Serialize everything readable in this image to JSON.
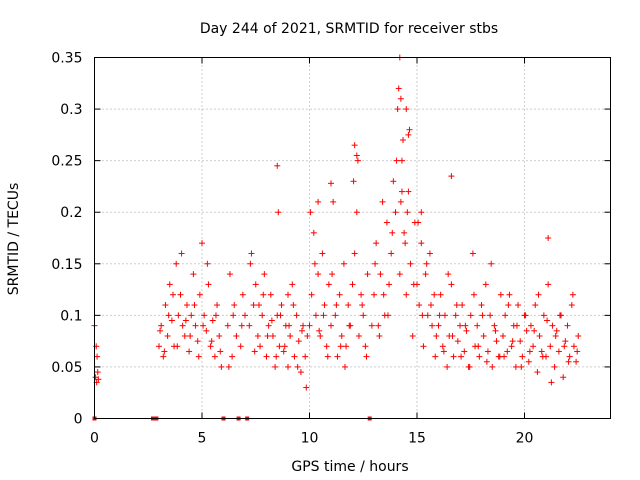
{
  "chart_data": {
    "type": "scatter",
    "title": "Day 244 of 2021, SRMTID for receiver stbs",
    "xlabel": "GPS time / hours",
    "ylabel": "SRMTID / TECUs",
    "xlim": [
      0,
      24
    ],
    "ylim": [
      0,
      0.35
    ],
    "xticks": [
      0,
      5,
      10,
      15,
      20
    ],
    "xtick_labels": [
      "0",
      "5",
      "10",
      "15",
      "20"
    ],
    "yticks": [
      0,
      0.05,
      0.1,
      0.15,
      0.2,
      0.25,
      0.3,
      0.35
    ],
    "ytick_labels": [
      "0",
      "0.05",
      "0.1",
      "0.15",
      "0.2",
      "0.25",
      "0.3",
      "0.35"
    ],
    "grid": true,
    "marker": "plus",
    "color": "#ff0000",
    "zero_points_x": [
      0.0,
      2.72,
      2.88,
      6.0,
      6.7,
      7.1,
      12.8
    ],
    "series": [
      {
        "name": "SRMTID",
        "color": "#ff0000",
        "x": [
          0.0,
          0.05,
          0.08,
          0.1,
          0.12,
          0.15,
          0.18,
          3.0,
          3.1,
          3.2,
          3.3,
          3.4,
          3.5,
          3.6,
          3.7,
          3.8,
          3.9,
          4.0,
          4.1,
          4.2,
          4.3,
          4.4,
          4.5,
          4.6,
          4.7,
          4.8,
          4.9,
          5.0,
          5.1,
          5.2,
          5.3,
          5.4,
          5.5,
          5.6,
          5.7,
          5.8,
          5.9,
          3.05,
          3.25,
          3.45,
          3.65,
          3.85,
          4.05,
          4.25,
          4.45,
          4.65,
          4.85,
          5.05,
          5.25,
          5.45,
          5.65,
          5.85,
          6.2,
          6.3,
          6.4,
          6.5,
          6.6,
          6.8,
          6.9,
          7.0,
          7.2,
          7.3,
          7.4,
          7.5,
          7.6,
          7.7,
          7.8,
          7.9,
          8.0,
          8.1,
          8.2,
          8.3,
          8.4,
          8.5,
          8.6,
          8.7,
          8.8,
          8.9,
          9.0,
          9.1,
          9.2,
          9.3,
          9.4,
          9.5,
          9.6,
          9.7,
          9.8,
          9.9,
          6.25,
          6.45,
          6.85,
          7.25,
          7.45,
          7.65,
          7.85,
          8.05,
          8.25,
          8.45,
          8.65,
          8.85,
          9.05,
          9.25,
          9.45,
          9.65,
          9.85,
          10.0,
          10.1,
          10.2,
          10.3,
          10.4,
          10.5,
          10.6,
          10.7,
          10.8,
          10.9,
          11.0,
          11.1,
          11.2,
          11.3,
          11.4,
          11.5,
          11.6,
          11.7,
          11.8,
          11.9,
          12.0,
          12.1,
          12.2,
          12.3,
          12.4,
          12.5,
          12.6,
          12.7,
          12.9,
          10.05,
          10.25,
          10.45,
          10.65,
          10.85,
          11.05,
          11.25,
          11.45,
          11.65,
          11.85,
          12.05,
          12.25,
          12.45,
          12.65,
          13.0,
          13.1,
          13.2,
          13.3,
          13.4,
          13.5,
          13.6,
          13.7,
          13.8,
          13.9,
          14.0,
          14.1,
          14.2,
          14.3,
          14.4,
          14.5,
          14.6,
          14.7,
          14.8,
          14.9,
          15.0,
          15.1,
          15.2,
          15.3,
          15.4,
          15.5,
          15.6,
          15.7,
          15.8,
          15.9,
          13.05,
          13.25,
          13.45,
          13.65,
          13.85,
          14.05,
          14.15,
          14.25,
          14.35,
          14.45,
          14.55,
          14.65,
          14.85,
          15.05,
          15.25,
          15.45,
          15.65,
          15.85,
          16.0,
          16.1,
          16.2,
          16.3,
          16.4,
          16.5,
          16.6,
          16.7,
          16.8,
          16.9,
          17.0,
          17.1,
          17.2,
          17.3,
          17.4,
          17.5,
          17.6,
          17.7,
          17.8,
          17.9,
          18.0,
          18.1,
          18.2,
          18.3,
          18.4,
          18.5,
          18.6,
          18.7,
          18.8,
          18.9,
          16.05,
          16.25,
          16.45,
          16.65,
          16.85,
          17.05,
          17.25,
          17.45,
          17.65,
          17.85,
          18.05,
          18.25,
          18.45,
          18.65,
          18.85,
          19.0,
          19.1,
          19.2,
          19.3,
          19.4,
          19.5,
          19.6,
          19.7,
          19.8,
          19.9,
          20.0,
          20.1,
          20.2,
          20.3,
          20.4,
          20.5,
          20.6,
          20.7,
          20.8,
          20.9,
          21.0,
          21.1,
          21.2,
          21.3,
          21.4,
          21.5,
          21.6,
          21.7,
          21.8,
          21.9,
          22.0,
          22.1,
          22.2,
          22.3,
          22.4,
          22.5,
          19.05,
          19.25,
          19.45,
          19.65,
          19.85,
          20.05,
          20.25,
          20.45,
          20.65,
          20.85,
          21.05,
          21.25,
          21.45,
          21.65,
          21.85,
          22.05,
          22.25,
          22.45,
          8.5,
          8.55,
          12.1,
          12.2,
          14.2,
          14.25,
          14.3,
          14.5,
          14.6,
          16.6,
          21.1,
          11.0,
          10.4,
          9.0,
          15.2
        ],
        "y": [
          0.09,
          0.04,
          0.07,
          0.035,
          0.06,
          0.045,
          0.038,
          0.07,
          0.09,
          0.06,
          0.11,
          0.08,
          0.13,
          0.095,
          0.07,
          0.15,
          0.1,
          0.12,
          0.09,
          0.08,
          0.11,
          0.065,
          0.1,
          0.14,
          0.09,
          0.075,
          0.12,
          0.17,
          0.1,
          0.085,
          0.13,
          0.07,
          0.095,
          0.06,
          0.11,
          0.08,
          0.05,
          0.085,
          0.065,
          0.1,
          0.12,
          0.07,
          0.16,
          0.095,
          0.08,
          0.11,
          0.06,
          0.09,
          0.15,
          0.075,
          0.1,
          0.065,
          0.09,
          0.14,
          0.06,
          0.11,
          0.08,
          0.07,
          0.12,
          0.1,
          0.09,
          0.16,
          0.11,
          0.13,
          0.08,
          0.07,
          0.1,
          0.14,
          0.06,
          0.09,
          0.12,
          0.08,
          0.05,
          0.1,
          0.07,
          0.11,
          0.065,
          0.09,
          0.05,
          0.08,
          0.13,
          0.06,
          0.1,
          0.075,
          0.045,
          0.09,
          0.06,
          0.08,
          0.05,
          0.1,
          0.09,
          0.15,
          0.065,
          0.11,
          0.12,
          0.08,
          0.095,
          0.06,
          0.1,
          0.07,
          0.09,
          0.11,
          0.05,
          0.085,
          0.03,
          0.09,
          0.12,
          0.18,
          0.1,
          0.14,
          0.08,
          0.16,
          0.11,
          0.07,
          0.13,
          0.09,
          0.21,
          0.1,
          0.06,
          0.12,
          0.08,
          0.15,
          0.07,
          0.11,
          0.09,
          0.13,
          0.16,
          0.2,
          0.08,
          0.12,
          0.1,
          0.07,
          0.14,
          0.09,
          0.2,
          0.15,
          0.085,
          0.1,
          0.06,
          0.14,
          0.11,
          0.07,
          0.05,
          0.09,
          0.23,
          0.25,
          0.11,
          0.06,
          0.12,
          0.17,
          0.09,
          0.14,
          0.21,
          0.1,
          0.19,
          0.13,
          0.16,
          0.23,
          0.2,
          0.3,
          0.14,
          0.25,
          0.18,
          0.12,
          0.22,
          0.15,
          0.08,
          0.19,
          0.13,
          0.11,
          0.17,
          0.07,
          0.14,
          0.1,
          0.16,
          0.09,
          0.12,
          0.08,
          0.15,
          0.08,
          0.12,
          0.1,
          0.18,
          0.25,
          0.32,
          0.21,
          0.27,
          0.17,
          0.2,
          0.28,
          0.13,
          0.19,
          0.1,
          0.15,
          0.11,
          0.06,
          0.09,
          0.12,
          0.07,
          0.1,
          0.05,
          0.08,
          0.13,
          0.06,
          0.1,
          0.075,
          0.09,
          0.11,
          0.065,
          0.085,
          0.05,
          0.1,
          0.16,
          0.07,
          0.09,
          0.06,
          0.11,
          0.08,
          0.13,
          0.065,
          0.1,
          0.05,
          0.09,
          0.075,
          0.06,
          0.12,
          0.1,
          0.065,
          0.14,
          0.08,
          0.11,
          0.06,
          0.09,
          0.05,
          0.12,
          0.07,
          0.1,
          0.055,
          0.15,
          0.085,
          0.06,
          0.08,
          0.1,
          0.065,
          0.12,
          0.07,
          0.09,
          0.05,
          0.11,
          0.075,
          0.06,
          0.1,
          0.085,
          0.055,
          0.09,
          0.07,
          0.11,
          0.045,
          0.08,
          0.065,
          0.1,
          0.06,
          0.13,
          0.07,
          0.09,
          0.05,
          0.085,
          0.065,
          0.1,
          0.04,
          0.075,
          0.09,
          0.06,
          0.11,
          0.07,
          0.055,
          0.08,
          0.06,
          0.11,
          0.075,
          0.09,
          0.05,
          0.1,
          0.065,
          0.085,
          0.12,
          0.06,
          0.095,
          0.035,
          0.08,
          0.1,
          0.07,
          0.055,
          0.12,
          0.065,
          0.245,
          0.2,
          0.265,
          0.255,
          0.35,
          0.31,
          0.22,
          0.3,
          0.275,
          0.235,
          0.175,
          0.228,
          0.21,
          0.12,
          0.2
        ]
      }
    ]
  }
}
